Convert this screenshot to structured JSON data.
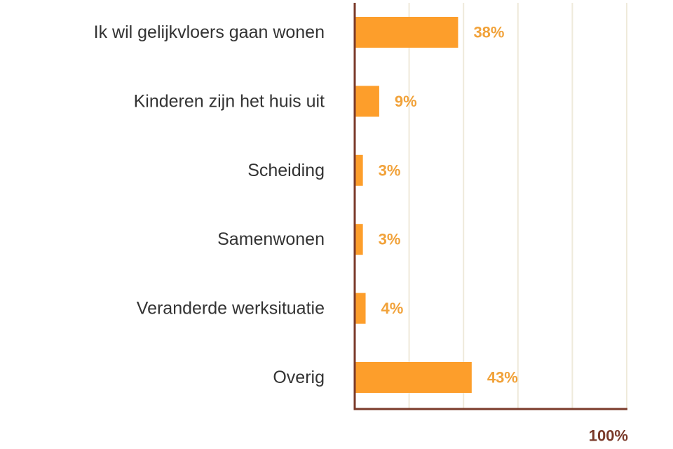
{
  "colors": {
    "bar": "#fd9e2b",
    "value_label": "#f1a23a",
    "axis": "#7a3a2a",
    "grid": "#efeadb",
    "category_text": "#333333"
  },
  "chart_data": {
    "type": "bar",
    "orientation": "horizontal",
    "categories": [
      "Ik wil gelijkvloers gaan wonen",
      "Kinderen zijn het huis uit",
      "Scheiding",
      "Samenwonen",
      "Veranderde werksituatie",
      "Overig"
    ],
    "values": [
      38,
      9,
      3,
      3,
      4,
      43
    ],
    "value_labels": [
      "38%",
      "9%",
      "3%",
      "3%",
      "4%",
      "43%"
    ],
    "xlim": [
      0,
      100
    ],
    "x_max_label": "100%",
    "grid": true
  }
}
